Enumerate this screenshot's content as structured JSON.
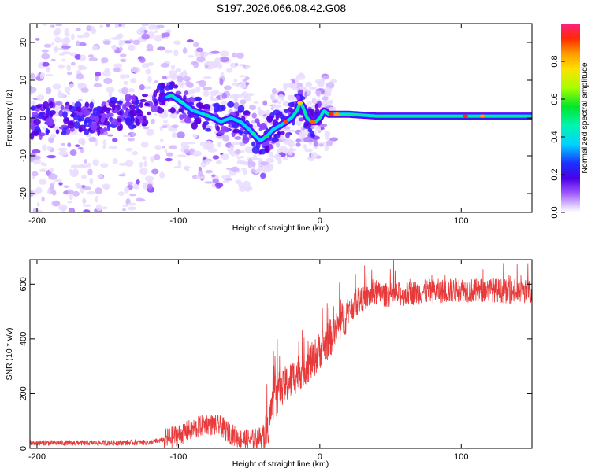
{
  "title": "S197.2026.066.08.42.G08",
  "colors": {
    "signal": "#e83a3a",
    "frame": "#000000",
    "zero_line": "#000000"
  },
  "chart_data": [
    {
      "type": "heatmap",
      "name": "spectrogram",
      "xlabel": "Height of straight line (km)",
      "ylabel": "Frequency (Hz)",
      "xlim": [
        -205,
        150
      ],
      "ylim": [
        -25,
        25
      ],
      "xticks": [
        -200,
        -100,
        0,
        100
      ],
      "yticks": [
        20,
        10,
        0,
        -10,
        -20
      ],
      "colorbar": {
        "label": "Normalized spectral amplitude",
        "range": [
          0,
          1
        ],
        "ticks": [
          "0.0",
          "0.2",
          "0.4",
          "0.6",
          "0.8"
        ]
      },
      "ridge": {
        "description_points_x_km": [
          -205,
          -185,
          -165,
          -145,
          -125,
          -112,
          -105,
          -97,
          -90,
          -82,
          -75,
          -70,
          -63,
          -56,
          -50,
          -45,
          -42,
          -38,
          -33,
          -28,
          -24,
          -20,
          -16,
          -14,
          -12,
          -9,
          -6,
          -3,
          0,
          3,
          6,
          10,
          20,
          40,
          60,
          80,
          100,
          120,
          150
        ],
        "frequency_hz": [
          -1,
          0,
          -0.5,
          1,
          2,
          5,
          6,
          4,
          2,
          1,
          0,
          -1,
          0,
          -1,
          -3,
          -5,
          -6,
          -5,
          -3,
          -2,
          -1,
          0,
          2,
          4,
          3,
          0,
          -1,
          -1,
          0,
          2,
          1,
          1,
          1,
          0.5,
          0.5,
          0.5,
          0.5,
          0.5,
          0.5
        ]
      }
    },
    {
      "type": "line",
      "name": "snr",
      "xlabel": "Height of straight line (km)",
      "ylabel": "SNR (10 * v/v)",
      "xlim": [
        -205,
        150
      ],
      "ylim": [
        0,
        690
      ],
      "xticks": [
        -200,
        -100,
        0,
        100
      ],
      "yticks": [
        0,
        200,
        400,
        600
      ],
      "series": [
        {
          "name": "SNR",
          "x": [
            -205,
            -180,
            -150,
            -120,
            -112,
            -105,
            -100,
            -95,
            -90,
            -85,
            -80,
            -75,
            -70,
            -65,
            -60,
            -55,
            -50,
            -45,
            -40,
            -37,
            -34,
            -32,
            -30,
            -27,
            -25,
            -20,
            -15,
            -10,
            -5,
            0,
            5,
            10,
            15,
            20,
            25,
            30,
            35,
            40,
            50,
            60,
            70,
            80,
            90,
            100,
            110,
            120,
            130,
            140,
            150
          ],
          "values": [
            20,
            20,
            20,
            22,
            30,
            40,
            50,
            60,
            70,
            80,
            90,
            85,
            80,
            60,
            45,
            35,
            30,
            35,
            45,
            70,
            150,
            200,
            180,
            200,
            230,
            250,
            280,
            300,
            320,
            360,
            390,
            420,
            460,
            500,
            525,
            545,
            555,
            565,
            560,
            565,
            570,
            575,
            575,
            580,
            575,
            580,
            575,
            570,
            575
          ]
        }
      ]
    }
  ]
}
